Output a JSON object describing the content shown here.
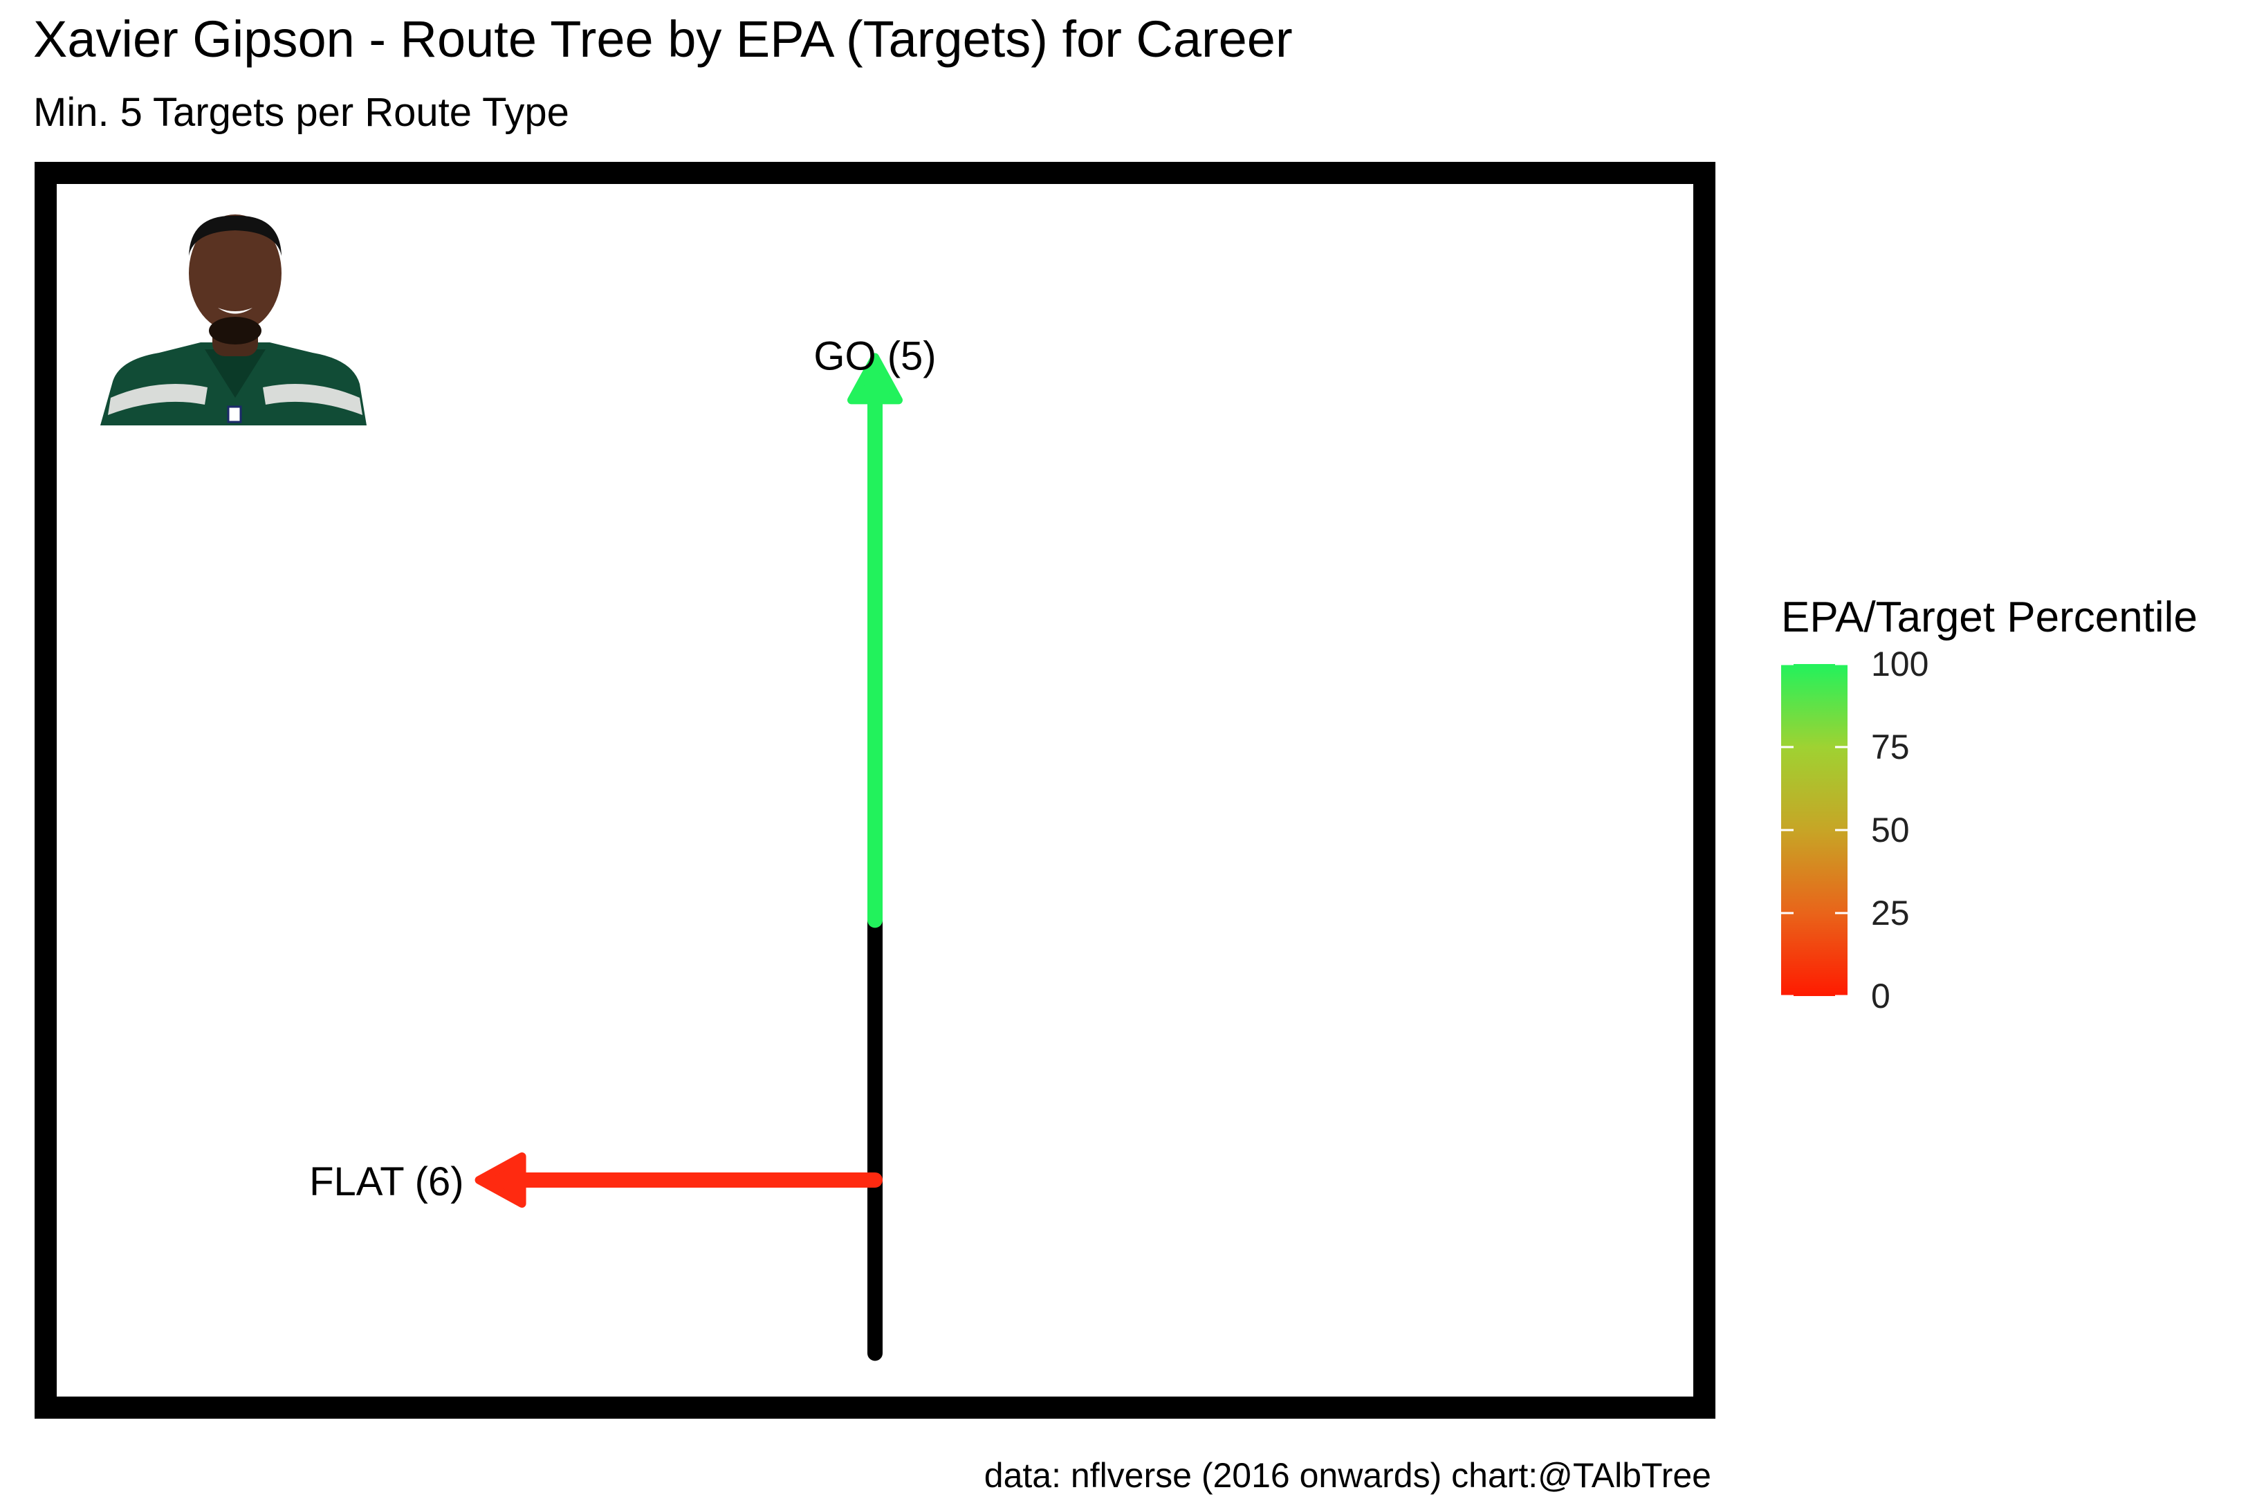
{
  "chart_data": {
    "type": "route-tree",
    "title": "Xavier Gipson - Route Tree by EPA (Targets) for Career",
    "subtitle": "Min. 5 Targets per Route Type",
    "caption": "data: nflverse (2016 onwards)  chart:@TAlbTree",
    "stem": {
      "from": [
        0,
        0
      ],
      "to": [
        0,
        10
      ]
    },
    "routes": [
      {
        "name": "GO",
        "targets": 5,
        "label": "GO (5)",
        "epa_percentile": 100,
        "color": "#22F25C",
        "from": [
          0,
          10
        ],
        "to": [
          0,
          23
        ]
      },
      {
        "name": "FLAT",
        "targets": 6,
        "label": "FLAT (6)",
        "epa_percentile": 0,
        "color": "#FF2A10",
        "from": [
          0,
          4
        ],
        "to": [
          -6,
          4
        ]
      }
    ],
    "xlim": [
      -12.4,
      12.4
    ],
    "ylim": [
      -1,
      27
    ],
    "legend": {
      "title": "EPA/Target Percentile",
      "ticks": [
        "100",
        "75",
        "50",
        "25",
        "0"
      ],
      "tick_values": [
        100,
        75,
        50,
        25,
        0
      ],
      "range": [
        0,
        100
      ],
      "gradient": [
        "#FF1A00",
        "#E9641A",
        "#C7A526",
        "#9FD232",
        "#22F25C"
      ],
      "placement": "right"
    },
    "headshot": {
      "description": "player headshot",
      "jersey_color": "#114C36",
      "placement": "top-left"
    }
  }
}
